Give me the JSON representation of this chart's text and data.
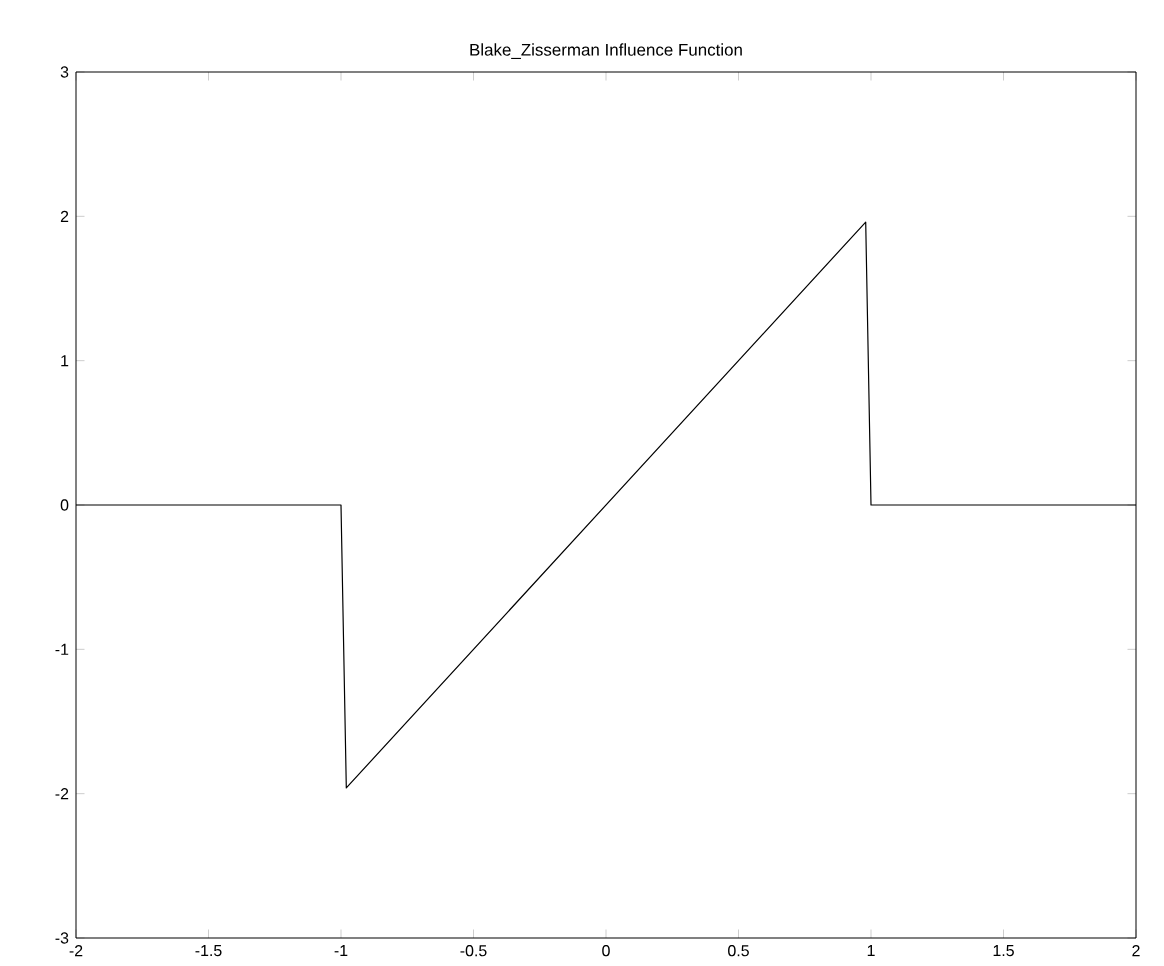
{
  "chart_data": {
    "type": "line",
    "title": "Blake_Zisserman Influence Function",
    "x": [
      -2,
      -1,
      -0.98,
      0.98,
      1,
      2
    ],
    "series": [
      {
        "color": "#000000",
        "values": [
          0,
          0,
          -1.96,
          1.96,
          0,
          0
        ]
      }
    ],
    "xlim": [
      -2,
      2
    ],
    "ylim": [
      -3,
      3
    ],
    "xticks": [
      -2,
      -1.5,
      -1,
      -0.5,
      0,
      0.5,
      1,
      1.5,
      2
    ],
    "yticks": [
      -3,
      -2,
      -1,
      0,
      1,
      2,
      3
    ],
    "marker": "none",
    "line_style": "solid"
  }
}
